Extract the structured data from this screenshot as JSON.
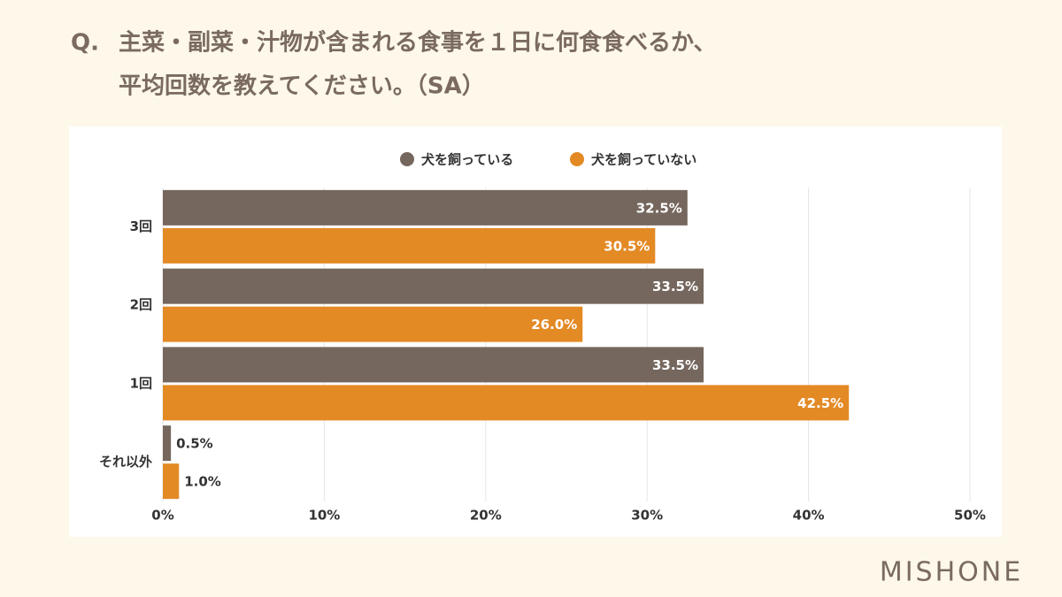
{
  "chart_data": {
    "type": "bar",
    "orientation": "horizontal",
    "question_label": "Q.",
    "title": [
      "主菜・副菜・汁物が含まれる食事を１日に何食食べるか、",
      "平均回数を教えてください。（SA）"
    ],
    "categories": [
      "3回",
      "2回",
      "1回",
      "それ以外"
    ],
    "series": [
      {
        "name": "犬を飼っている",
        "color": "#75675e",
        "values": [
          32.5,
          33.5,
          33.5,
          0.5
        ],
        "value_labels": [
          "32.5%",
          "33.5%",
          "33.5%",
          "0.5%"
        ]
      },
      {
        "name": "犬を飼っていない",
        "color": "#e38a25",
        "values": [
          30.5,
          26.0,
          42.5,
          1.0
        ],
        "value_labels": [
          "30.5%",
          "26.0%",
          "42.5%",
          "1.0%"
        ]
      }
    ],
    "xlim": [
      0,
      50
    ],
    "xticks": [
      {
        "value": 0,
        "label": "0%"
      },
      {
        "value": 10,
        "label": "10%"
      },
      {
        "value": 20,
        "label": "20%"
      },
      {
        "value": 30,
        "label": "30%"
      },
      {
        "value": 40,
        "label": "40%"
      },
      {
        "value": 50,
        "label": "50%"
      }
    ],
    "grid": true,
    "legend": "top"
  },
  "brand": "MISHONE"
}
